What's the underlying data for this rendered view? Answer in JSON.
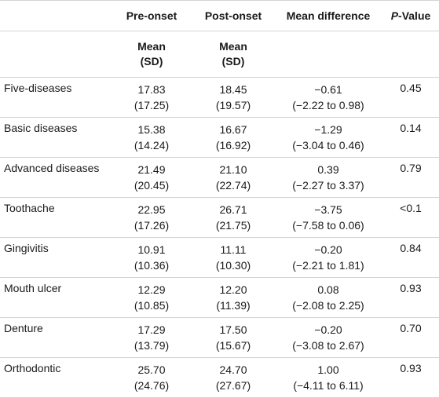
{
  "headers": {
    "col0": "",
    "col1": "Pre-onset",
    "col2": "Post-onset",
    "col3": "Mean difference",
    "col4_p": "P",
    "col4_rest": "-Value"
  },
  "subheaders": {
    "col1_line1": "Mean",
    "col1_line2": "(SD)",
    "col2_line1": "Mean",
    "col2_line2": "(SD)"
  },
  "rows": [
    {
      "label": "Five-diseases",
      "pre_mean": "17.83",
      "pre_sd": "(17.25)",
      "post_mean": "18.45",
      "post_sd": "(19.57)",
      "diff": "−0.61",
      "ci": "(−2.22 to 0.98)",
      "p": "0.45"
    },
    {
      "label": "Basic diseases",
      "pre_mean": "15.38",
      "pre_sd": "(14.24)",
      "post_mean": "16.67",
      "post_sd": "(16.92)",
      "diff": "−1.29",
      "ci": "(−3.04 to 0.46)",
      "p": "0.14"
    },
    {
      "label": "Advanced diseases",
      "pre_mean": "21.49",
      "pre_sd": "(20.45)",
      "post_mean": "21.10",
      "post_sd": "(22.74)",
      "diff": "0.39",
      "ci": "(−2.27 to 3.37)",
      "p": "0.79"
    },
    {
      "label": "Toothache",
      "pre_mean": "22.95",
      "pre_sd": "(17.26)",
      "post_mean": "26.71",
      "post_sd": "(21.75)",
      "diff": "−3.75",
      "ci": "(−7.58 to 0.06)",
      "p": "<0.1"
    },
    {
      "label": "Gingivitis",
      "pre_mean": "10.91",
      "pre_sd": "(10.36)",
      "post_mean": "11.11",
      "post_sd": "(10.30)",
      "diff": "−0.20",
      "ci": "(−2.21 to 1.81)",
      "p": "0.84"
    },
    {
      "label": "Mouth ulcer",
      "pre_mean": "12.29",
      "pre_sd": "(10.85)",
      "post_mean": "12.20",
      "post_sd": "(11.39)",
      "diff": "0.08",
      "ci": "(−2.08 to 2.25)",
      "p": "0.93"
    },
    {
      "label": "Denture",
      "pre_mean": "17.29",
      "pre_sd": "(13.79)",
      "post_mean": "17.50",
      "post_sd": "(15.67)",
      "diff": "−0.20",
      "ci": "(−3.08 to 2.67)",
      "p": "0.70"
    },
    {
      "label": "Orthodontic",
      "pre_mean": "25.70",
      "pre_sd": "(24.76)",
      "post_mean": "24.70",
      "post_sd": "(27.67)",
      "diff": "1.00",
      "ci": "(−4.11 to 6.11)",
      "p": "0.93"
    }
  ]
}
